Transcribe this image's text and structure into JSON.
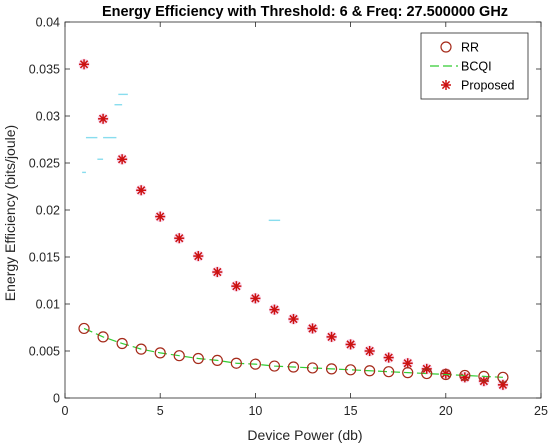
{
  "chart_data": {
    "type": "scatter",
    "title": "Energy Efficiency with Threshold: 6 & Freq: 27.500000 GHz",
    "xlabel": "Device Power (db)",
    "ylabel": "Energy Efficiency (bits/joule)",
    "xlim": [
      0,
      25
    ],
    "ylim": [
      0,
      0.04
    ],
    "xticks": [
      0,
      5,
      10,
      15,
      20,
      25
    ],
    "xtick_labels": [
      "0",
      "5",
      "10",
      "15",
      "20",
      "25"
    ],
    "yticks": [
      0,
      0.005,
      0.01,
      0.015,
      0.02,
      0.025,
      0.03,
      0.035,
      0.04
    ],
    "ytick_labels": [
      "0",
      "0.005",
      "0.01",
      "0.015",
      "0.02",
      "0.025",
      "0.03",
      "0.035",
      "0.04"
    ],
    "grid": false,
    "legend": {
      "placement": "top-right",
      "entries": [
        "RR",
        "BCQI",
        "Proposed"
      ]
    },
    "series": [
      {
        "name": "RR",
        "marker": "circle",
        "color": "#a52a1a",
        "x": [
          1,
          2,
          3,
          4,
          5,
          6,
          7,
          8,
          9,
          10,
          11,
          12,
          13,
          14,
          15,
          16,
          17,
          18,
          19,
          20,
          21,
          22,
          23
        ],
        "y": [
          0.0074,
          0.0065,
          0.0058,
          0.0052,
          0.0048,
          0.0045,
          0.0042,
          0.004,
          0.0037,
          0.0036,
          0.0034,
          0.0033,
          0.0032,
          0.0031,
          0.003,
          0.0029,
          0.0028,
          0.0027,
          0.0026,
          0.0025,
          0.0024,
          0.0023,
          0.0022
        ]
      },
      {
        "name": "BCQI",
        "marker": "dashed-line",
        "color": "#33cc33",
        "x": [
          1,
          2,
          3,
          4,
          5,
          6,
          7,
          8,
          9,
          10,
          11,
          12,
          13,
          14,
          15,
          16,
          17,
          18,
          19,
          20,
          21,
          22,
          23
        ],
        "y": [
          0.0074,
          0.0065,
          0.0058,
          0.0052,
          0.0048,
          0.0045,
          0.0042,
          0.004,
          0.0037,
          0.0036,
          0.0034,
          0.0033,
          0.0032,
          0.0031,
          0.003,
          0.0029,
          0.0028,
          0.0027,
          0.0026,
          0.0025,
          0.0024,
          0.0023,
          0.0022
        ]
      },
      {
        "name": "Proposed",
        "marker": "asterisk",
        "color": "#cc1111",
        "x": [
          1,
          2,
          3,
          4,
          5,
          6,
          7,
          8,
          9,
          10,
          11,
          12,
          13,
          14,
          15,
          16,
          17,
          18,
          19,
          20,
          21,
          22,
          23
        ],
        "y": [
          0.0355,
          0.0297,
          0.0254,
          0.0221,
          0.0193,
          0.017,
          0.0151,
          0.0134,
          0.0119,
          0.0106,
          0.0094,
          0.0084,
          0.0074,
          0.0065,
          0.0057,
          0.005,
          0.0043,
          0.0037,
          0.0031,
          0.0026,
          0.0022,
          0.0018,
          0.0014
        ]
      }
    ],
    "artifact_dashes": [
      {
        "x": [
          0.9,
          1.1
        ],
        "y": 0.024,
        "color": "#88ddee"
      },
      {
        "x": [
          1.1,
          1.7
        ],
        "y": 0.0277,
        "color": "#88ddee"
      },
      {
        "x": [
          2.0,
          2.7
        ],
        "y": 0.0277,
        "color": "#88ddee"
      },
      {
        "x": [
          1.7,
          2.0
        ],
        "y": 0.0254,
        "color": "#88ddee"
      },
      {
        "x": [
          2.6,
          3.0
        ],
        "y": 0.0312,
        "color": "#88ddee"
      },
      {
        "x": [
          2.8,
          3.3
        ],
        "y": 0.0323,
        "color": "#88ddee"
      },
      {
        "x": [
          10.7,
          11.3
        ],
        "y": 0.0189,
        "color": "#88ddee"
      }
    ]
  }
}
